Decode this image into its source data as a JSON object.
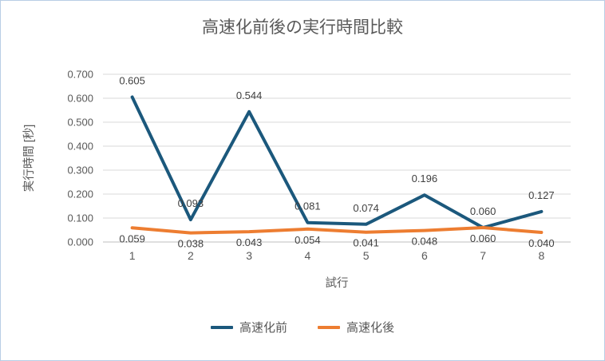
{
  "frame": {
    "background": "#FFFFFF",
    "border_color": "#B9CDE5"
  },
  "chart_data": {
    "type": "line",
    "title": "高速化前後の実行時間比較",
    "xlabel": "試行",
    "ylabel": "実行時間 [秒]",
    "categories": [
      "1",
      "2",
      "3",
      "4",
      "5",
      "6",
      "7",
      "8"
    ],
    "y_ticks": [
      "0.000",
      "0.100",
      "0.200",
      "0.300",
      "0.400",
      "0.500",
      "0.600",
      "0.700"
    ],
    "ylim": [
      0,
      0.7
    ],
    "grid": true,
    "grid_color": "#D9D9D9",
    "axis_line_color": "#BFBFBF",
    "text_color": "#595959",
    "label_color": "#404040",
    "legend_position": "bottom",
    "series": [
      {
        "name": "高速化前",
        "color": "#1B587C",
        "values": [
          0.605,
          0.093,
          0.544,
          0.081,
          0.074,
          0.196,
          0.06,
          0.127
        ],
        "labels": [
          "0.605",
          "0.093",
          "0.544",
          "0.081",
          "0.074",
          "0.196",
          "0.060",
          "0.127"
        ],
        "label_position": "above"
      },
      {
        "name": "高速化後",
        "color": "#ED7D31",
        "values": [
          0.059,
          0.038,
          0.043,
          0.054,
          0.041,
          0.048,
          0.06,
          0.04
        ],
        "labels": [
          "0.059",
          "0.038",
          "0.043",
          "0.054",
          "0.041",
          "0.048",
          "0.060",
          "0.040"
        ],
        "label_position": "below"
      }
    ]
  }
}
